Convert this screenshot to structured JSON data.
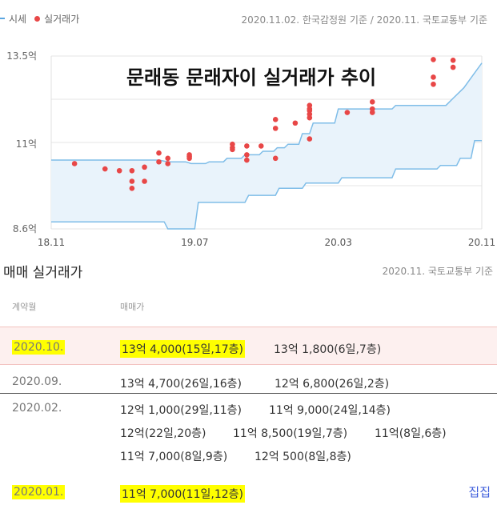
{
  "legend": {
    "price_label": "시세",
    "trade_label": "실거래가"
  },
  "source_top": "2020.11.02. 한국감정원 기준 / 2020.11. 국토교통부 기준",
  "colors": {
    "band_line": "#7fbde8",
    "band_fill": "#e9f3fb",
    "dot": "#e84747",
    "highlight": "#ffff00"
  },
  "chart_data": {
    "type": "scatter",
    "title": "문래동 문래자이 실거래가 추이",
    "x_tick_labels": [
      "18.11",
      "19.07",
      "20.03",
      "20.11"
    ],
    "y_tick_labels": [
      "8.6억",
      "11억",
      "13.5억"
    ],
    "xlim": [
      0,
      24
    ],
    "ylim": [
      8.6,
      13.5
    ],
    "band_upper": [
      [
        0,
        10.55
      ],
      [
        6,
        10.55
      ],
      [
        6.5,
        10.5
      ],
      [
        7.5,
        10.5
      ],
      [
        7.8,
        10.45
      ],
      [
        8.6,
        10.45
      ],
      [
        8.8,
        10.5
      ],
      [
        9.6,
        10.5
      ],
      [
        9.8,
        10.6
      ],
      [
        10.6,
        10.6
      ],
      [
        10.8,
        10.7
      ],
      [
        11.6,
        10.7
      ],
      [
        11.8,
        10.8
      ],
      [
        12.4,
        10.8
      ],
      [
        12.6,
        10.9
      ],
      [
        13.0,
        10.9
      ],
      [
        13.2,
        11.0
      ],
      [
        13.8,
        11.0
      ],
      [
        14.0,
        11.3
      ],
      [
        14.4,
        11.3
      ],
      [
        14.6,
        11.6
      ],
      [
        15.8,
        11.6
      ],
      [
        16.0,
        12.0
      ],
      [
        19.0,
        12.0
      ],
      [
        19.2,
        12.1
      ],
      [
        22.0,
        12.1
      ],
      [
        22.4,
        12.3
      ],
      [
        23.0,
        12.6
      ],
      [
        23.5,
        12.95
      ],
      [
        24.0,
        13.3
      ]
    ],
    "band_lower": [
      [
        0,
        8.8
      ],
      [
        6.3,
        8.8
      ],
      [
        6.5,
        8.6
      ],
      [
        8.0,
        8.6
      ],
      [
        8.2,
        9.35
      ],
      [
        10.8,
        9.35
      ],
      [
        11.0,
        9.55
      ],
      [
        12.5,
        9.55
      ],
      [
        12.7,
        9.75
      ],
      [
        14.0,
        9.75
      ],
      [
        14.2,
        9.9
      ],
      [
        16.0,
        9.9
      ],
      [
        16.2,
        10.05
      ],
      [
        19.0,
        10.05
      ],
      [
        19.2,
        10.3
      ],
      [
        21.5,
        10.3
      ],
      [
        21.7,
        10.4
      ],
      [
        22.6,
        10.4
      ],
      [
        22.8,
        10.6
      ],
      [
        23.4,
        10.6
      ],
      [
        23.6,
        11.1
      ],
      [
        24.0,
        11.1
      ]
    ],
    "trades": [
      [
        1.3,
        10.45
      ],
      [
        3.0,
        10.3
      ],
      [
        3.8,
        10.25
      ],
      [
        4.5,
        10.25
      ],
      [
        4.5,
        9.95
      ],
      [
        4.5,
        9.75
      ],
      [
        5.2,
        10.35
      ],
      [
        5.2,
        9.95
      ],
      [
        6.0,
        10.5
      ],
      [
        6.0,
        10.75
      ],
      [
        6.5,
        10.45
      ],
      [
        6.5,
        10.6
      ],
      [
        7.7,
        10.6
      ],
      [
        7.7,
        10.7
      ],
      [
        7.7,
        10.65
      ],
      [
        10.1,
        10.85
      ],
      [
        10.1,
        11.0
      ],
      [
        10.1,
        10.9
      ],
      [
        10.9,
        10.7
      ],
      [
        10.9,
        10.55
      ],
      [
        10.9,
        10.95
      ],
      [
        11.7,
        10.95
      ],
      [
        12.5,
        10.6
      ],
      [
        12.5,
        11.45
      ],
      [
        12.5,
        11.7
      ],
      [
        13.6,
        11.6
      ],
      [
        14.4,
        11.15
      ],
      [
        14.4,
        11.75
      ],
      [
        14.4,
        11.85
      ],
      [
        14.4,
        11.95
      ],
      [
        14.4,
        12.0
      ],
      [
        14.4,
        12.1
      ],
      [
        16.5,
        11.9
      ],
      [
        17.9,
        11.9
      ],
      [
        17.9,
        12.0
      ],
      [
        17.9,
        12.2
      ],
      [
        21.3,
        12.7
      ],
      [
        21.3,
        12.9
      ],
      [
        21.3,
        13.4
      ],
      [
        22.4,
        13.18
      ],
      [
        22.4,
        13.38
      ]
    ]
  },
  "section": {
    "title": "매매 실거래가",
    "source": "2020.11. 국토교통부 기준"
  },
  "table": {
    "col_month": "계약월",
    "col_price": "매매가",
    "rows": [
      {
        "month": "2020.10.",
        "trades": [
          "13억 4,000(15일,17층)",
          "13억 1,800(6일,7층)"
        ]
      },
      {
        "month": "2020.09.",
        "trades": [
          "13억 4,700(26일,16층)",
          "12억 6,800(26일,2층)"
        ]
      },
      {
        "month": "2020.02.",
        "trades": [
          "12억 1,000(29일,11층)",
          "11억 9,000(24일,14층)",
          "12억(22일,20층)",
          "11억 8,500(19일,7층)",
          "11억(8일,6층)",
          "11억 7,000(8일,9층)",
          "12억 500(8일,8층)"
        ]
      },
      {
        "month": "2020.01.",
        "trades": [
          "11억 7,000(11일,12층)"
        ]
      }
    ],
    "more_label": "집집"
  }
}
